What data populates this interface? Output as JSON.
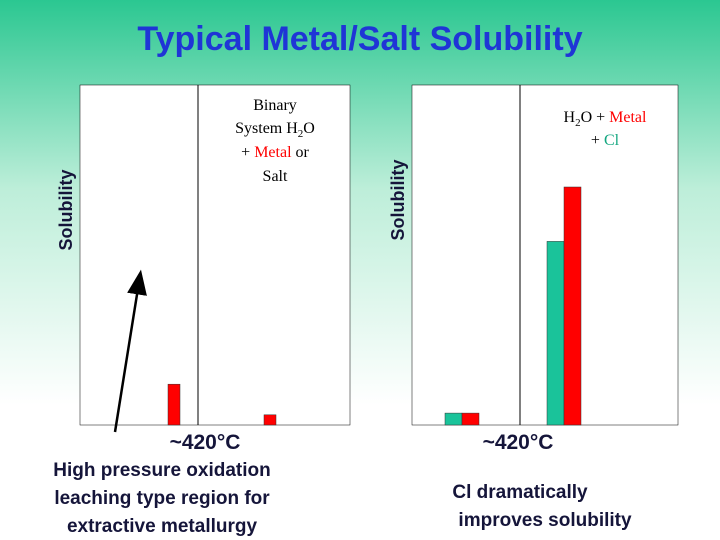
{
  "title": "Typical Metal/Salt Solubility",
  "chart_data": [
    {
      "type": "bar",
      "ylabel": "Solubility",
      "xlabel": "~420°C",
      "categories": [
        null,
        null
      ],
      "series": [
        {
          "color": "#ff0000",
          "values": [
            12,
            3
          ]
        }
      ],
      "ylim": [
        0,
        100
      ],
      "annotation": [
        "Binary",
        "System H",
        "2",
        "O",
        "+",
        "Metal",
        "or",
        "Salt"
      ],
      "caption": [
        "High pressure oxidation",
        "leaching type region for",
        "extractive metallurgy"
      ]
    },
    {
      "type": "bar",
      "ylabel": "Solubility",
      "xlabel": "~420°C",
      "categories": [
        null,
        null
      ],
      "series": [
        {
          "color": "#1ac39a",
          "values": [
            3.5,
            54
          ]
        },
        {
          "color": "#ff0000",
          "values": [
            3.5,
            70
          ]
        }
      ],
      "ylim": [
        0,
        100
      ],
      "annotation": [
        "H",
        "2",
        "O",
        "+",
        "Metal",
        "+",
        "Cl"
      ],
      "caption": [
        "Cl dramatically",
        "improves solubility"
      ]
    }
  ]
}
